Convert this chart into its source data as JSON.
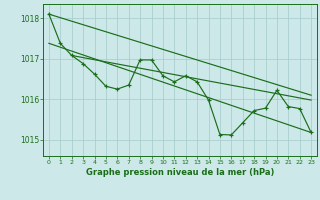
{
  "title": "Graphe pression niveau de la mer (hPa)",
  "background_color": "#cde8e8",
  "grid_color": "#aacece",
  "line_color": "#1a6e1a",
  "xlim": [
    -0.5,
    23.5
  ],
  "ylim": [
    1014.6,
    1018.35
  ],
  "yticks": [
    1015,
    1016,
    1017,
    1018
  ],
  "xticks": [
    0,
    1,
    2,
    3,
    4,
    5,
    6,
    7,
    8,
    9,
    10,
    11,
    12,
    13,
    14,
    15,
    16,
    17,
    18,
    19,
    20,
    21,
    22,
    23
  ],
  "series1_x": [
    0,
    1,
    2,
    3,
    4,
    5,
    6,
    7,
    8,
    9,
    10,
    11,
    12,
    13,
    14,
    15,
    16,
    17,
    18,
    19,
    20,
    21,
    22,
    23
  ],
  "series1_y": [
    1018.1,
    1017.38,
    1017.08,
    1016.88,
    1016.62,
    1016.32,
    1016.25,
    1016.35,
    1016.97,
    1016.97,
    1016.58,
    1016.43,
    1016.58,
    1016.43,
    1015.98,
    1015.13,
    1015.12,
    1015.42,
    1015.72,
    1015.78,
    1016.22,
    1015.82,
    1015.77,
    1015.18
  ],
  "trend1_x": [
    0,
    23
  ],
  "trend1_y": [
    1018.1,
    1016.1
  ],
  "trend2_x": [
    0,
    23
  ],
  "trend2_y": [
    1017.38,
    1015.18
  ],
  "trend3_x": [
    2,
    23
  ],
  "trend3_y": [
    1017.08,
    1015.98
  ]
}
